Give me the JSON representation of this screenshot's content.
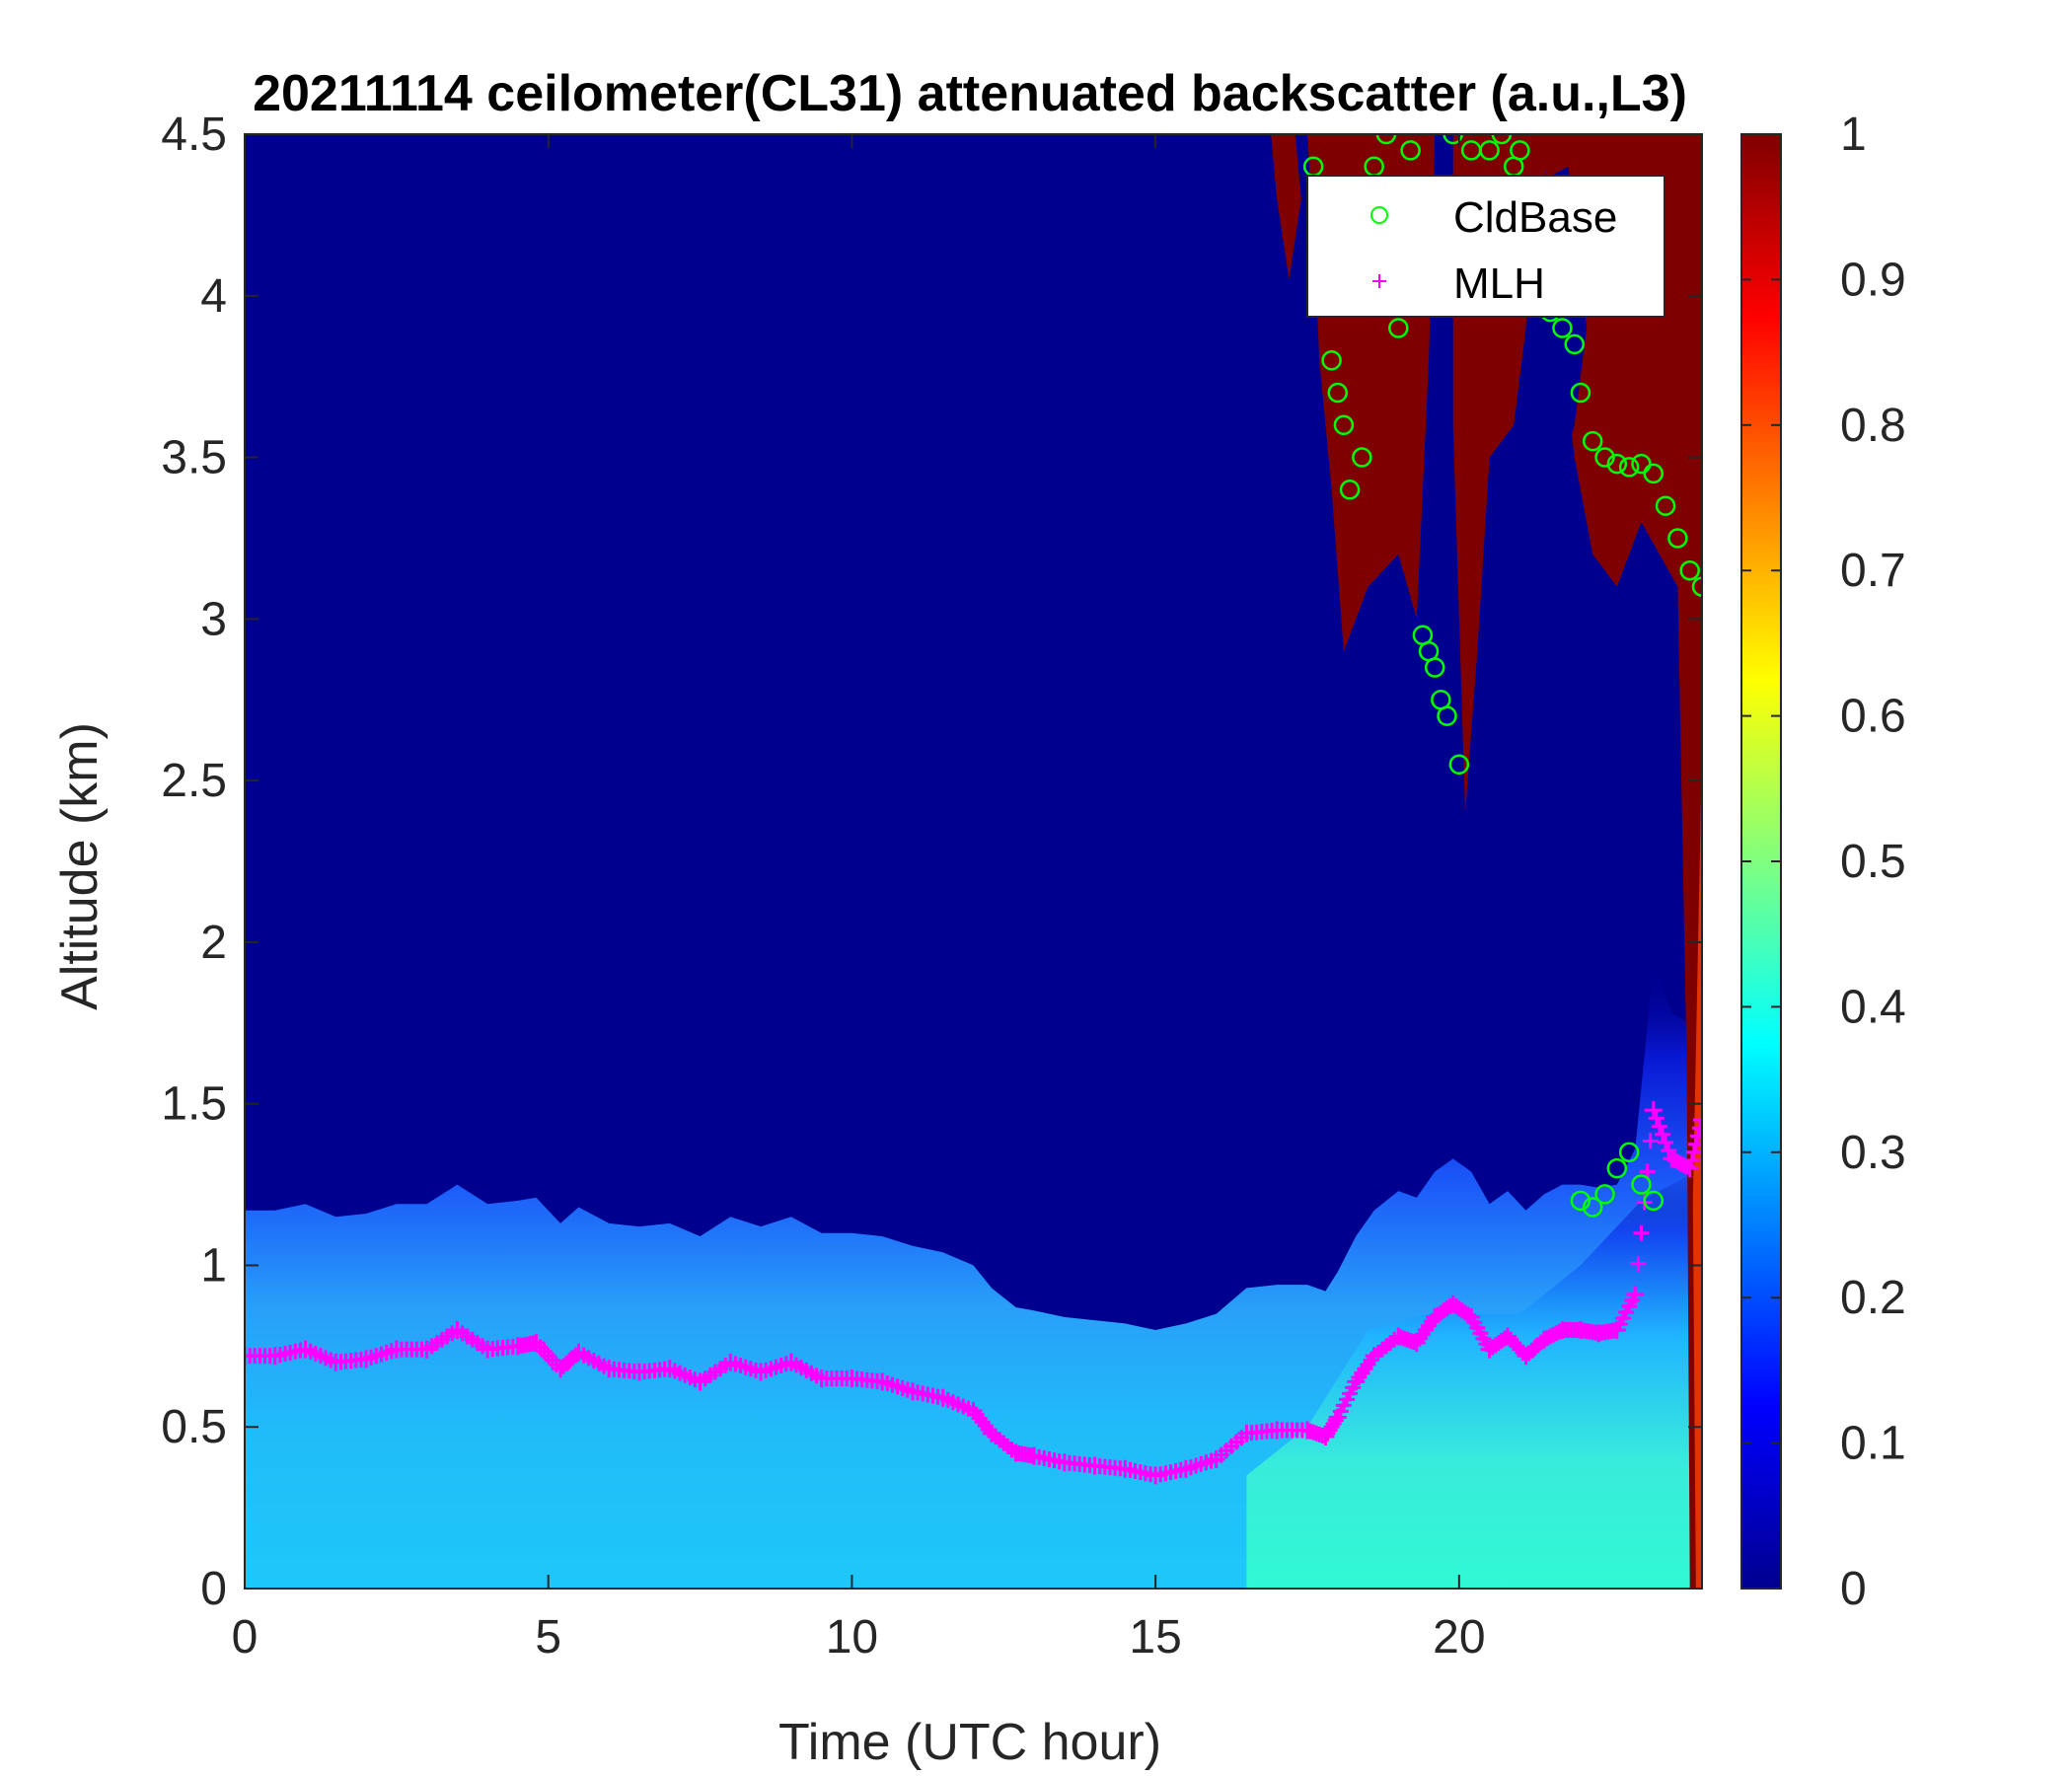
{
  "chart_data": {
    "type": "heatmap",
    "title": "20211114 ceilometer(CL31) attenuated backscatter (a.u.,L3)",
    "xlabel": "Time (UTC hour)",
    "ylabel": "Altitude (km)",
    "xlim": [
      0,
      24
    ],
    "ylim": [
      0,
      4.5
    ],
    "xticks": [
      0,
      5,
      10,
      15,
      20
    ],
    "xtick_labels": [
      "0",
      "5",
      "10",
      "15",
      "20"
    ],
    "yticks": [
      0,
      0.5,
      1,
      1.5,
      2,
      2.5,
      3,
      3.5,
      4,
      4.5
    ],
    "ytick_labels": [
      "0",
      "0.5",
      "1",
      "1.5",
      "2",
      "2.5",
      "3",
      "3.5",
      "4",
      "4.5"
    ],
    "colorbar": {
      "colormap": "jet",
      "clim": [
        0,
        1
      ],
      "ticks": [
        0,
        0.1,
        0.2,
        0.3,
        0.4,
        0.5,
        0.6,
        0.7,
        0.8,
        0.9,
        1
      ],
      "tick_labels": [
        "0",
        "0.1",
        "0.2",
        "0.3",
        "0.4",
        "0.5",
        "0.6",
        "0.7",
        "0.8",
        "0.9",
        "1"
      ]
    },
    "legend": {
      "placement": "top-right",
      "entries": [
        {
          "label": "CldBase",
          "marker": "circle",
          "color": "#00ff00"
        },
        {
          "label": "MLH",
          "marker": "plus",
          "color": "#ff00ff"
        }
      ]
    },
    "series": [
      {
        "name": "MLH",
        "marker": "plus",
        "color": "#ff00ff",
        "x": [
          0,
          0.5,
          1,
          1.5,
          2,
          2.5,
          3,
          3.5,
          4,
          4.5,
          4.8,
          5.2,
          5.5,
          6,
          6.5,
          7,
          7.5,
          8,
          8.5,
          9,
          9.5,
          10,
          10.5,
          11,
          11.5,
          12,
          12.3,
          12.7,
          13,
          13.5,
          14,
          14.5,
          15,
          15.5,
          16,
          16.5,
          17,
          17.5,
          17.8,
          18,
          18.3,
          18.6,
          19,
          19.3,
          19.6,
          19.9,
          20.2,
          20.5,
          20.8,
          21.1,
          21.4,
          21.7,
          22,
          22.3,
          22.6,
          22.9,
          23.2,
          23.5,
          23.8,
          24
        ],
        "y": [
          0.72,
          0.72,
          0.74,
          0.7,
          0.71,
          0.74,
          0.74,
          0.8,
          0.74,
          0.75,
          0.76,
          0.68,
          0.73,
          0.68,
          0.67,
          0.68,
          0.64,
          0.7,
          0.67,
          0.7,
          0.65,
          0.65,
          0.64,
          0.61,
          0.59,
          0.55,
          0.48,
          0.42,
          0.41,
          0.39,
          0.38,
          0.37,
          0.35,
          0.37,
          0.4,
          0.48,
          0.49,
          0.49,
          0.47,
          0.53,
          0.64,
          0.72,
          0.78,
          0.76,
          0.84,
          0.88,
          0.84,
          0.74,
          0.78,
          0.72,
          0.77,
          0.8,
          0.8,
          0.79,
          0.8,
          0.91,
          1.48,
          1.33,
          1.3,
          1.45
        ]
      },
      {
        "name": "CldBase",
        "marker": "circle",
        "color": "#00ff00",
        "x": [
          17.6,
          17.8,
          17.9,
          18.0,
          18.1,
          18.2,
          18.4,
          18.6,
          18.8,
          19.0,
          19.2,
          19.4,
          19.5,
          19.6,
          19.7,
          19.8,
          19.9,
          20.0,
          20.2,
          20.5,
          20.7,
          20.9,
          21.0,
          21.1,
          21.3,
          21.5,
          21.7,
          21.9,
          22.0,
          22.2,
          22.4,
          22.6,
          22.8,
          23.0,
          23.2,
          23.4,
          23.6,
          23.8,
          24.0,
          22.0,
          22.2,
          22.4,
          22.6,
          22.8,
          23.0,
          23.2
        ],
        "y": [
          4.4,
          4.1,
          3.8,
          3.7,
          3.6,
          3.4,
          3.5,
          4.4,
          4.5,
          3.9,
          4.45,
          2.95,
          2.9,
          2.85,
          2.75,
          2.7,
          4.5,
          2.55,
          4.45,
          4.45,
          4.5,
          4.4,
          4.45,
          4.3,
          4.0,
          3.95,
          3.9,
          3.85,
          3.7,
          3.55,
          3.5,
          3.48,
          3.47,
          3.48,
          3.45,
          3.35,
          3.25,
          3.15,
          3.1,
          1.2,
          1.18,
          1.22,
          1.3,
          1.35,
          1.25,
          1.2
        ]
      }
    ]
  }
}
